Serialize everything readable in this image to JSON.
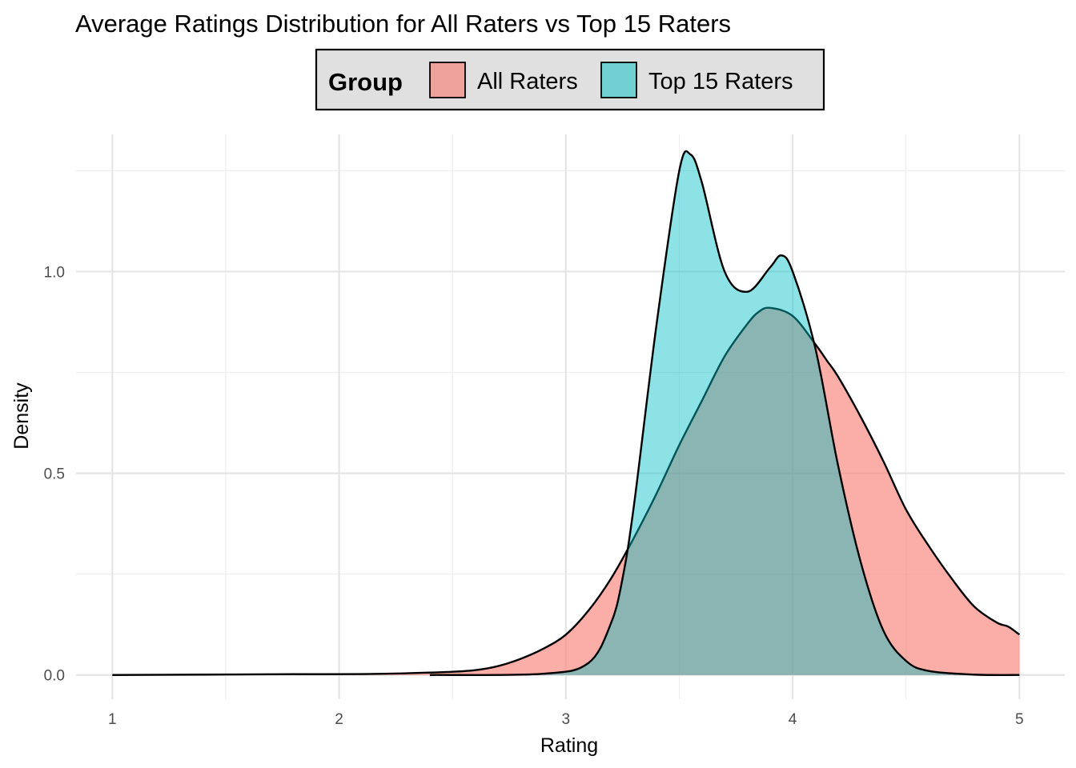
{
  "chart_data": {
    "type": "area",
    "title": "Average Ratings Distribution for All Raters vs Top 15 Raters",
    "xlabel": "Rating",
    "ylabel": "Density",
    "xlim": [
      0.84,
      5.2
    ],
    "ylim": [
      -0.06,
      1.34
    ],
    "x_ticks": [
      1,
      2,
      3,
      4,
      5
    ],
    "x_tick_labels": [
      "1",
      "2",
      "3",
      "4",
      "5"
    ],
    "y_ticks": [
      0.0,
      0.5,
      1.0
    ],
    "y_tick_labels": [
      "0.0",
      "0.5",
      "1.0"
    ],
    "grid": true,
    "legend": {
      "title": "Group",
      "position": "top",
      "entries": [
        "All Raters",
        "Top 15 Raters"
      ]
    },
    "series": [
      {
        "name": "All Raters",
        "color": "#F8766D",
        "x": [
          1.0,
          1.4,
          1.8,
          2.0,
          2.2,
          2.4,
          2.5,
          2.6,
          2.7,
          2.8,
          2.9,
          3.0,
          3.1,
          3.2,
          3.3,
          3.4,
          3.5,
          3.6,
          3.7,
          3.8,
          3.85,
          3.9,
          4.0,
          4.1,
          4.15,
          4.2,
          4.3,
          4.4,
          4.5,
          4.6,
          4.7,
          4.8,
          4.9,
          4.95,
          5.0
        ],
        "y": [
          0.0,
          0.001,
          0.002,
          0.002,
          0.003,
          0.006,
          0.008,
          0.012,
          0.022,
          0.04,
          0.065,
          0.1,
          0.16,
          0.24,
          0.34,
          0.45,
          0.57,
          0.68,
          0.79,
          0.87,
          0.9,
          0.91,
          0.89,
          0.82,
          0.78,
          0.74,
          0.64,
          0.53,
          0.41,
          0.32,
          0.24,
          0.17,
          0.13,
          0.12,
          0.1
        ]
      },
      {
        "name": "Top 15 Raters",
        "color": "#00BFC4",
        "x": [
          2.4,
          2.9,
          3.1,
          3.2,
          3.25,
          3.3,
          3.4,
          3.5,
          3.55,
          3.6,
          3.7,
          3.8,
          3.9,
          3.95,
          4.0,
          4.1,
          4.2,
          4.3,
          4.4,
          4.5,
          4.6,
          4.8,
          5.0
        ],
        "y": [
          0.0,
          0.003,
          0.03,
          0.13,
          0.24,
          0.42,
          0.87,
          1.25,
          1.29,
          1.22,
          1.0,
          0.95,
          1.01,
          1.04,
          1.0,
          0.81,
          0.52,
          0.28,
          0.11,
          0.035,
          0.01,
          0.001,
          0.0
        ]
      }
    ]
  }
}
